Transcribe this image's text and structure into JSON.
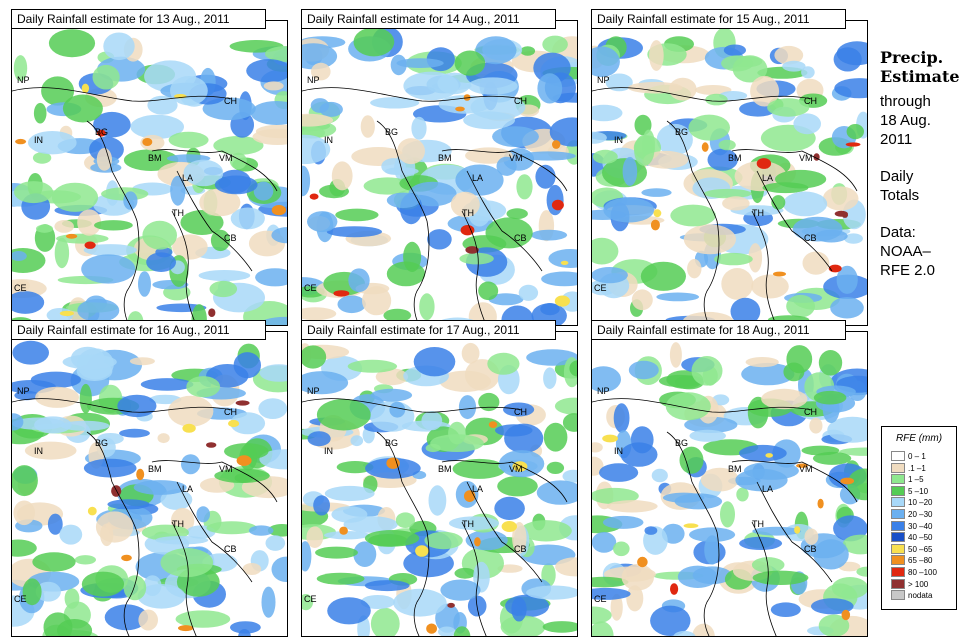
{
  "panels": [
    {
      "title": "Daily Rainfall estimate for  13 Aug., 2011"
    },
    {
      "title": "Daily Rainfall estimate for  14 Aug., 2011"
    },
    {
      "title": "Daily Rainfall estimate for  15 Aug., 2011"
    },
    {
      "title": "Daily Rainfall estimate for  16 Aug., 2011"
    },
    {
      "title": "Daily Rainfall estimate for  17 Aug., 2011"
    },
    {
      "title": "Daily Rainfall estimate for  18 Aug., 2011"
    }
  ],
  "map_labels": [
    "NP",
    "CH",
    "IN",
    "BG",
    "BM",
    "VM",
    "LA",
    "TH",
    "CB",
    "CE"
  ],
  "side": {
    "line1": "Precip.",
    "line2": "Estimate",
    "line3": "through",
    "line4": "18 Aug.",
    "line5": "2011",
    "line6": "Daily",
    "line7": "Totals",
    "line8": "Data:",
    "line9": "NOAA–",
    "line10": "RFE 2.0"
  },
  "legend": {
    "title": "RFE (mm)",
    "items": [
      {
        "label": "0 – 1",
        "color": "#ffffff"
      },
      {
        "label": ".1 –1",
        "color": "#f0dcc0"
      },
      {
        "label": "1 –5",
        "color": "#8fe88f"
      },
      {
        "label": "5 –10",
        "color": "#55cc55"
      },
      {
        "label": "10 –20",
        "color": "#a8d8f8"
      },
      {
        "label": "20 –30",
        "color": "#6bb0f0"
      },
      {
        "label": "30 –40",
        "color": "#3a80e8"
      },
      {
        "label": "40 –50",
        "color": "#1a50c8"
      },
      {
        "label": "50 –65",
        "color": "#f8e050"
      },
      {
        "label": "65 –80",
        "color": "#f09020"
      },
      {
        "label": "80 –100",
        "color": "#e02810"
      },
      {
        "label": "> 100",
        "color": "#903030"
      },
      {
        "label": "nodata",
        "color": "#c8c8c8"
      }
    ]
  }
}
